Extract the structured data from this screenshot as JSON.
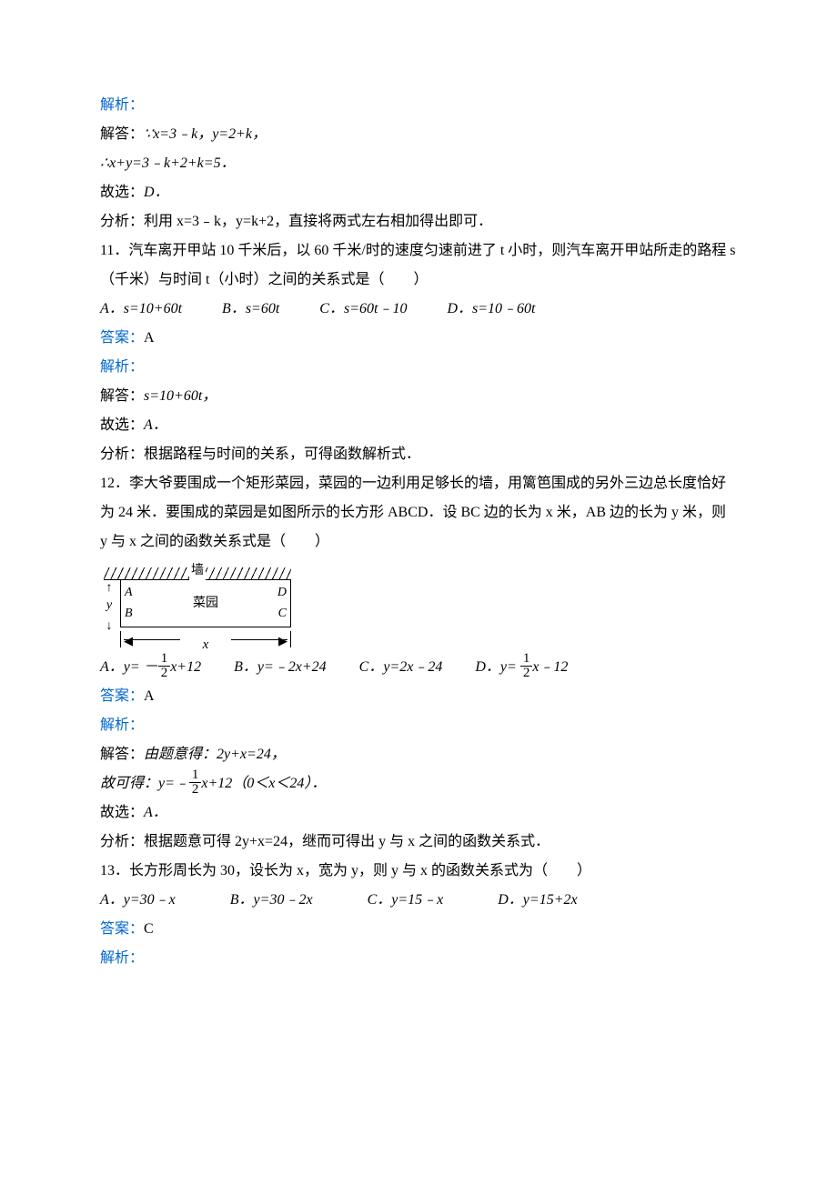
{
  "colors": {
    "link_blue": "#0066cc",
    "text": "#000000",
    "bg": "#ffffff"
  },
  "labels": {
    "analysis": "解析：",
    "solve": "解答：",
    "choose": "故选：",
    "analyze": "分析：",
    "answer": "答案："
  },
  "q10_tail": {
    "solve_line": "∵x=3﹣k，y=2+k，",
    "so_line": "∴x+y=3﹣k+2+k=5．",
    "choose_value": "D．",
    "analyze_text": "利用 x=3﹣k，y=k+2，直接将两式左右相加得出即可．"
  },
  "q11": {
    "stem": "11．汽车离开甲站 10 千米后，以 60 千米/时的速度匀速前进了 t 小时，则汽车离开甲站所走的路程 s（千米）与时间 t（小时）之间的关系式是（　　）",
    "opts": {
      "A": "A．s=10+60t",
      "B": "B．s=60t",
      "C": "C．s=60t﹣10",
      "D": "D．s=10﹣60t"
    },
    "answer_value": "A",
    "solve_text": "s=10+60t，",
    "choose_value": "A．",
    "analyze_text": "根据路程与时间的关系，可得函数解析式．"
  },
  "q12": {
    "stem": "12．李大爷要围成一个矩形菜园，菜园的一边利用足够长的墙，用篱笆围成的另外三边总长度恰好为 24 米．要围成的菜园是如图所示的长方形 ABCD．设 BC 边的长为 x 米，AB 边的长为 y 米，则 y 与 x 之间的函数关系式是（　　）",
    "fig": {
      "wall": "墙",
      "garden": "菜园",
      "A": "A",
      "B": "B",
      "C": "C",
      "D": "D",
      "x": "x",
      "y": "y"
    },
    "opts": {
      "A_prefix": "A．y= －",
      "A_suffix": "x+12",
      "B": "B．y=﹣2x+24",
      "C": "C．y=2x﹣24",
      "D_prefix": "D．y= ",
      "D_suffix": "x﹣12",
      "frac_num": "1",
      "frac_den": "2"
    },
    "answer_value": "A",
    "solve_text": "由题意得：2y+x=24，",
    "derive_prefix": "故可得：y=﹣",
    "derive_suffix": "x+12（0＜x＜24）．",
    "choose_value": "A．",
    "analyze_text": "根据题意可得 2y+x=24，继而可得出 y 与 x 之间的函数关系式．"
  },
  "q13": {
    "stem": "13．长方形周长为 30，设长为 x，宽为 y，则 y 与 x 的函数关系式为（　　）",
    "opts": {
      "A": "A．y=30﹣x",
      "B": "B．y=30﹣2x",
      "C": "C．y=15﹣x",
      "D": "D．y=15+2x"
    },
    "answer_value": "C"
  }
}
